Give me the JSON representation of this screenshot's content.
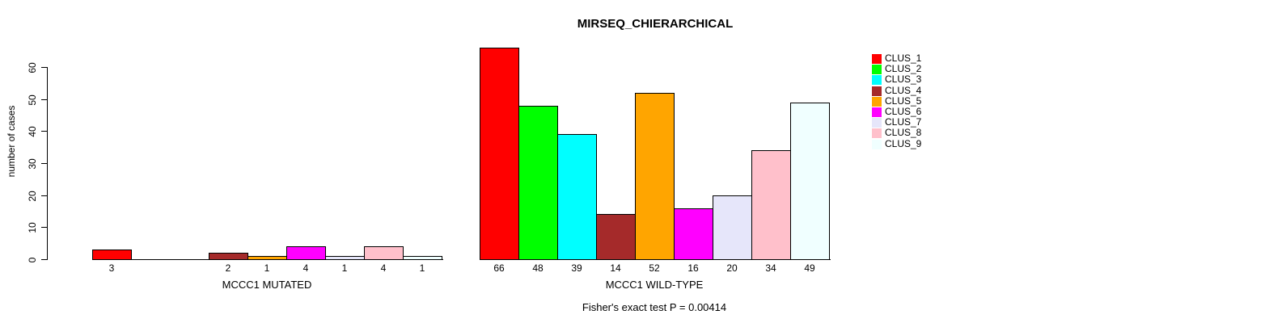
{
  "chart_data": {
    "type": "bar",
    "title": "MIRSEQ_CHIERARCHICAL",
    "ylabel": "number of cases",
    "xlabel": "",
    "yticks": [
      0,
      10,
      20,
      30,
      40,
      50,
      60
    ],
    "ylim": [
      0,
      66
    ],
    "grid": false,
    "legend_position": "right",
    "bar_value_labels_shown_under_bars": true,
    "categories": [
      "CLUS_1",
      "CLUS_2",
      "CLUS_3",
      "CLUS_4",
      "CLUS_5",
      "CLUS_6",
      "CLUS_7",
      "CLUS_8",
      "CLUS_9"
    ],
    "colors": [
      "#FF0000",
      "#00FF00",
      "#00FFFF",
      "#A52A2A",
      "#FFA500",
      "#FF00FF",
      "#E6E6FA",
      "#FFC0CB",
      "#F0FFFF"
    ],
    "groups": [
      {
        "label": "MCCC1 MUTATED",
        "values": [
          3,
          0,
          0,
          2,
          1,
          4,
          1,
          4,
          1
        ]
      },
      {
        "label": "MCCC1 WILD-TYPE",
        "values": [
          66,
          48,
          39,
          14,
          52,
          16,
          20,
          34,
          49
        ]
      }
    ],
    "annotation": "Fisher's exact test P = 0.00414"
  }
}
